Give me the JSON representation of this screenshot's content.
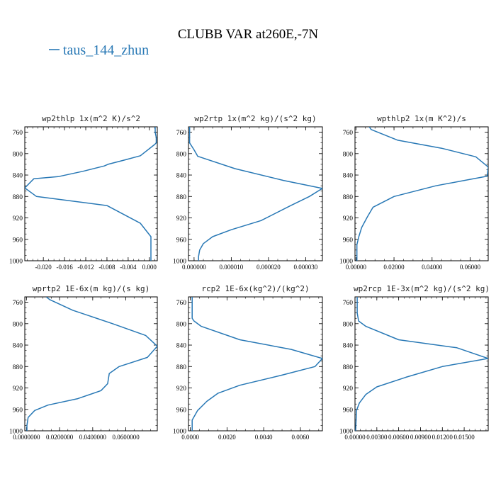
{
  "figure": {
    "title": "CLUBB VAR at260E,-7N",
    "legend_label": "taus_144_zhun",
    "line_color": "#2878b5",
    "axis_color": "#000000"
  },
  "chart_data": [
    {
      "type": "line",
      "title": "wp2thlp  1x(m^2 K)/s^2",
      "xlim": [
        -0.0235,
        0.0015
      ],
      "ylim": [
        1000,
        750
      ],
      "xticks": [
        -0.02,
        -0.016,
        -0.012,
        -0.008,
        -0.004,
        0.0
      ],
      "xtick_labels": [
        "-0.020",
        "-0.016",
        "-0.012",
        "-0.008",
        "-0.004",
        "0.000"
      ],
      "yticks": [
        760,
        800,
        840,
        880,
        920,
        960,
        1000
      ],
      "ytick_labels": [
        "760",
        "800",
        "840",
        "880",
        "920",
        "960",
        "1000"
      ],
      "series": [
        {
          "x": [
            0.0011,
            0.0011,
            0.0013,
            0.0013,
            0.001,
            -0.0017,
            -0.0047,
            -0.0078,
            -0.0085,
            -0.0125,
            -0.0172,
            -0.0218,
            -0.0235,
            -0.0213,
            -0.008,
            -0.0017,
            0.0003,
            0.0003
          ],
          "y": [
            750,
            760,
            770,
            780,
            783,
            804,
            812,
            820,
            823,
            833,
            843,
            847,
            864,
            880,
            897,
            930,
            955,
            1000
          ]
        }
      ]
    },
    {
      "type": "line",
      "title": "wp2rtp  1x(m^2 kg)/(s^2 kg)",
      "xlim": [
        -1.5e-06,
        3.45e-05
      ],
      "ylim": [
        1000,
        750
      ],
      "xticks": [
        0.0,
        1e-05,
        2e-05,
        3e-05
      ],
      "xtick_labels": [
        "0.000000",
        "0.000010",
        "0.000020",
        "0.000030"
      ],
      "yticks": [
        760,
        800,
        840,
        880,
        920,
        960,
        1000
      ],
      "ytick_labels": [
        "760",
        "800",
        "840",
        "880",
        "920",
        "960",
        "1000"
      ],
      "series": [
        {
          "x": [
            -1.2e-06,
            -1.2e-06,
            -1.2e-06,
            0.0,
            1e-06,
            1.1e-05,
            2.4e-05,
            3.45e-05,
            3.1e-05,
            2.6e-05,
            1.8e-05,
            1e-05,
            5e-06,
            2.5e-06,
            1.5e-06,
            1.2e-06,
            1.2e-06
          ],
          "y": [
            750,
            770,
            780,
            793,
            805,
            828,
            850,
            865,
            880,
            897,
            925,
            942,
            955,
            968,
            980,
            992,
            1000
          ]
        }
      ]
    },
    {
      "type": "line",
      "title": "wpthlp2  1x(m K^2)/s",
      "xlim": [
        -0.0005,
        0.0695
      ],
      "ylim": [
        1000,
        750
      ],
      "xticks": [
        0.0,
        0.02,
        0.04,
        0.06
      ],
      "xtick_labels": [
        "0.00000",
        "0.02000",
        "0.04000",
        "0.06000"
      ],
      "yticks": [
        760,
        800,
        840,
        880,
        920,
        960,
        1000
      ],
      "ytick_labels": [
        "760",
        "800",
        "840",
        "880",
        "920",
        "960",
        "1000"
      ],
      "series": [
        {
          "x": [
            0.007,
            0.008,
            0.022,
            0.045,
            0.063,
            0.0695,
            0.069,
            0.042,
            0.02,
            0.009,
            0.006,
            0.003,
            0.0015,
            0.0005,
            0.0005
          ],
          "y": [
            750,
            755,
            775,
            790,
            806,
            825,
            842,
            860,
            880,
            900,
            918,
            938,
            955,
            970,
            1000
          ]
        }
      ]
    },
    {
      "type": "line",
      "title": "wprtp2  1E-6x(m kg)/(s kg)",
      "xlim": [
        -0.001,
        0.079
      ],
      "ylim": [
        1000,
        750
      ],
      "xticks": [
        0.0,
        0.02,
        0.04,
        0.06
      ],
      "xtick_labels": [
        "0.0000000",
        "0.0200000",
        "0.0400000",
        "0.0600000"
      ],
      "yticks": [
        760,
        800,
        840,
        880,
        920,
        960,
        1000
      ],
      "ytick_labels": [
        "760",
        "800",
        "840",
        "880",
        "920",
        "960",
        "1000"
      ],
      "series": [
        {
          "x": [
            0.012,
            0.014,
            0.028,
            0.052,
            0.072,
            0.079,
            0.073,
            0.056,
            0.05,
            0.049,
            0.045,
            0.031,
            0.013,
            0.005,
            0.001,
            0.0003,
            0.0003
          ],
          "y": [
            750,
            755,
            775,
            800,
            822,
            842,
            863,
            880,
            893,
            912,
            925,
            940,
            952,
            962,
            975,
            990,
            1000
          ]
        }
      ]
    },
    {
      "type": "line",
      "title": "rcp2  1E-6x(kg^2)/(kg^2)",
      "xlim": [
        -0.0001,
        0.0072
      ],
      "ylim": [
        1000,
        750
      ],
      "xticks": [
        0.0,
        0.002,
        0.004,
        0.006
      ],
      "xtick_labels": [
        "0.0000",
        "0.0020",
        "0.0040",
        "0.0060"
      ],
      "yticks": [
        760,
        800,
        840,
        880,
        920,
        960,
        1000
      ],
      "ytick_labels": [
        "760",
        "800",
        "840",
        "880",
        "920",
        "960",
        "1000"
      ],
      "series": [
        {
          "x": [
            0.0001,
            0.0001,
            0.0002,
            0.0006,
            0.0027,
            0.0055,
            0.0072,
            0.0068,
            0.005,
            0.0027,
            0.0015,
            0.0009,
            0.0004,
            0.0001,
            0.0001
          ],
          "y": [
            750,
            790,
            795,
            805,
            830,
            848,
            865,
            880,
            896,
            915,
            930,
            945,
            962,
            980,
            1000
          ]
        }
      ]
    },
    {
      "type": "line",
      "title": "wp2rcp  1E-3x(m^2 kg)/(s^2 kg)",
      "xlim": [
        0.0,
        0.0183
      ],
      "ylim": [
        1000,
        750
      ],
      "xticks": [
        0.0,
        0.003,
        0.006,
        0.009,
        0.012,
        0.015
      ],
      "xtick_labels": [
        "0.00000",
        "0.00300",
        "0.00600",
        "0.00900",
        "0.01200",
        "0.01500"
      ],
      "yticks": [
        760,
        800,
        840,
        880,
        920,
        960,
        1000
      ],
      "ytick_labels": [
        "760",
        "800",
        "840",
        "880",
        "920",
        "960",
        "1000"
      ],
      "series": [
        {
          "x": [
            0.0003,
            0.0003,
            0.0005,
            0.0015,
            0.006,
            0.014,
            0.0183,
            0.012,
            0.007,
            0.003,
            0.0015,
            0.0006,
            0.0002,
            0.0001
          ],
          "y": [
            750,
            780,
            795,
            805,
            830,
            845,
            865,
            880,
            900,
            918,
            932,
            948,
            962,
            1000
          ]
        }
      ]
    }
  ]
}
